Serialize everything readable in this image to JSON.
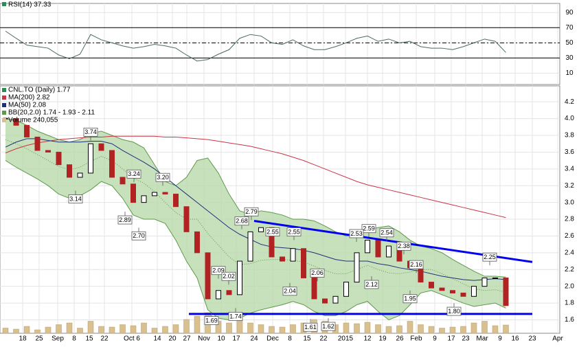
{
  "chart_data": {
    "type": "candlestick",
    "rsi": {
      "name": "RSI(14) 37.33",
      "color": "#4a6b5a",
      "values": [
        65.5,
        56,
        47,
        45,
        43,
        34,
        29,
        35,
        61,
        54,
        50,
        46,
        43,
        45,
        48,
        46,
        43,
        34,
        26,
        28,
        35,
        41,
        56,
        61,
        59,
        50,
        48,
        54,
        46,
        41,
        41,
        45,
        50,
        56,
        59,
        52,
        55,
        50,
        52,
        45,
        43,
        43,
        41,
        45,
        50,
        55,
        52,
        37.33
      ],
      "ylim": [
        -5,
        102
      ],
      "yticks": [
        10,
        30,
        50,
        70,
        90
      ],
      "levels": [
        70,
        50,
        30
      ]
    },
    "series": [
      {
        "name": "CNL.TO (Daily) 1.77",
        "color": "#000000",
        "down_color": "#b22222",
        "values": [
          4.0,
          3.92,
          3.78,
          3.62,
          3.6,
          3.45,
          3.3,
          3.35,
          3.7,
          3.62,
          3.3,
          3.22,
          3.0,
          3.08,
          3.12,
          3.1,
          2.95,
          2.65,
          2.4,
          1.85,
          1.95,
          1.9,
          2.3,
          2.65,
          2.7,
          2.35,
          2.3,
          2.45,
          2.1,
          1.85,
          1.8,
          1.88,
          2.05,
          2.4,
          2.55,
          2.35,
          2.48,
          2.3,
          2.22,
          2.05,
          1.98,
          1.95,
          1.92,
          1.88,
          2.0,
          2.1,
          2.1,
          1.77
        ]
      },
      {
        "name": "MA(200) 2.82",
        "color": "#cc3344",
        "values": [
          3.59,
          3.64,
          3.68,
          3.71,
          3.73,
          3.75,
          3.76,
          3.77,
          3.78,
          3.78,
          3.79,
          3.79,
          3.79,
          3.79,
          3.79,
          3.78,
          3.78,
          3.77,
          3.76,
          3.75,
          3.73,
          3.71,
          3.69,
          3.67,
          3.64,
          3.61,
          3.58,
          3.54,
          3.5,
          3.45,
          3.4,
          3.35,
          3.3,
          3.25,
          3.21,
          3.18,
          3.15,
          3.12,
          3.09,
          3.06,
          3.03,
          3.0,
          2.97,
          2.94,
          2.91,
          2.88,
          2.85,
          2.82
        ]
      },
      {
        "name": "MA(50) 2.08",
        "color": "#1f2f7a",
        "values": [
          3.66,
          3.72,
          3.76,
          3.76,
          3.74,
          3.72,
          3.72,
          3.72,
          3.73,
          3.73,
          3.7,
          3.62,
          3.55,
          3.48,
          3.4,
          3.3,
          3.2,
          3.1,
          3.0,
          2.9,
          2.8,
          2.7,
          2.62,
          2.56,
          2.5,
          2.47,
          2.46,
          2.45,
          2.43,
          2.4,
          2.36,
          2.32,
          2.3,
          2.3,
          2.3,
          2.27,
          2.25,
          2.22,
          2.2,
          2.18,
          2.15,
          2.12,
          2.1,
          2.08,
          2.07,
          2.08,
          2.09,
          2.08
        ]
      },
      {
        "name": "BB(20,2.0) 1.74 - 1.93 - 2.11",
        "color": "#5d9a4a",
        "fill": "#b9d9ad",
        "upper": [
          4.0,
          3.98,
          3.92,
          3.85,
          3.8,
          3.75,
          3.72,
          3.75,
          3.82,
          3.85,
          3.8,
          3.75,
          3.72,
          3.65,
          3.45,
          3.25,
          3.2,
          3.3,
          3.5,
          3.53,
          3.35,
          3.1,
          2.9,
          2.86,
          2.9,
          2.88,
          2.85,
          2.8,
          2.8,
          2.78,
          2.72,
          2.65,
          2.6,
          2.62,
          2.68,
          2.7,
          2.72,
          2.65,
          2.55,
          2.48,
          2.45,
          2.4,
          2.32,
          2.25,
          2.18,
          2.12,
          2.12,
          2.11
        ],
        "middle": [
          3.75,
          3.7,
          3.64,
          3.57,
          3.5,
          3.43,
          3.39,
          3.42,
          3.49,
          3.55,
          3.5,
          3.4,
          3.29,
          3.23,
          3.13,
          3.0,
          2.88,
          2.8,
          2.8,
          2.63,
          2.49,
          2.35,
          2.26,
          2.27,
          2.31,
          2.32,
          2.32,
          2.31,
          2.29,
          2.24,
          2.19,
          2.15,
          2.15,
          2.2,
          2.25,
          2.2,
          2.16,
          2.15,
          2.17,
          2.2,
          2.2,
          2.15,
          2.09,
          2.03,
          1.97,
          1.95,
          1.96,
          1.93
        ],
        "lower": [
          3.5,
          3.42,
          3.35,
          3.28,
          3.2,
          3.1,
          3.05,
          3.08,
          3.15,
          3.25,
          3.2,
          3.05,
          2.85,
          2.8,
          2.8,
          2.75,
          2.55,
          2.3,
          2.1,
          1.72,
          1.62,
          1.6,
          1.62,
          1.68,
          1.72,
          1.75,
          1.78,
          1.82,
          1.78,
          1.7,
          1.65,
          1.65,
          1.7,
          1.78,
          1.82,
          1.7,
          1.6,
          1.65,
          1.78,
          1.92,
          1.95,
          1.9,
          1.85,
          1.8,
          1.76,
          1.78,
          1.8,
          1.74
        ]
      },
      {
        "name": "Volume 240,055",
        "color": "#d8c090",
        "values": [
          150000,
          120000,
          200000,
          100000,
          180000,
          250000,
          300000,
          150000,
          350000,
          200000,
          180000,
          250000,
          220000,
          300000,
          150000,
          200000,
          250000,
          400000,
          500000,
          600000,
          350000,
          300000,
          450000,
          300000,
          250000,
          200000,
          180000,
          250000,
          300000,
          400000,
          350000,
          250000,
          300000,
          280000,
          320000,
          250000,
          200000,
          220000,
          350000,
          250000,
          200000,
          150000,
          180000,
          200000,
          300000,
          350000,
          220000,
          240055
        ]
      }
    ],
    "ylim": [
      1.44,
      4.39
    ],
    "yticks": [
      1.6,
      1.8,
      {
        "value": 2,
        "label": "2.0"
      },
      2.2,
      2.4,
      2.6,
      2.8,
      {
        "value": 3,
        "label": "3.0"
      },
      3.2,
      3.4,
      3.6,
      3.8,
      {
        "value": 4,
        "label": "4.0"
      },
      4.2
    ],
    "xlabels": [
      "18",
      "25",
      "Sep",
      "8",
      "15",
      "22",
      "Oct 6",
      "14",
      "20",
      "27",
      "Nov",
      "10",
      "17",
      "24",
      "Dec",
      "8",
      "15",
      "22",
      "2015",
      "12",
      "19",
      "26",
      "Feb",
      "9",
      "17",
      "23",
      "Mar",
      "9",
      "16",
      "23",
      "Apr"
    ],
    "annotations": {
      "values": [
        3.74,
        3.14,
        3.24,
        2.89,
        2.7,
        3.2,
        2.79,
        2.68,
        2.55,
        2.55,
        2.09,
        2.02,
        2.04,
        2.06,
        1.69,
        1.74,
        1.61,
        1.62,
        2.59,
        2.53,
        2.54,
        2.38,
        2.12,
        2.16,
        1.95,
        1.8,
        2.25
      ],
      "value_labels": [
        "3.74",
        "3.14",
        "3.24",
        "2.89",
        "2.70",
        "3.20",
        "2.79",
        "2.68",
        "2.55",
        "2.55",
        "2.09",
        "2.02",
        "2.04",
        "2.06",
        "1.69",
        "1.74",
        "1.61",
        "1.62",
        "2.59",
        "2.53",
        "2.54",
        "2.38",
        "2.12",
        "2.16",
        "1.95",
        "1.80",
        "2.25"
      ]
    },
    "trendlines": [
      {
        "color": "#0000ee",
        "values": [
          2.78,
          2.29
        ]
      },
      {
        "color": "#0000ee",
        "values": [
          1.67,
          1.67
        ]
      }
    ],
    "grid": true
  }
}
